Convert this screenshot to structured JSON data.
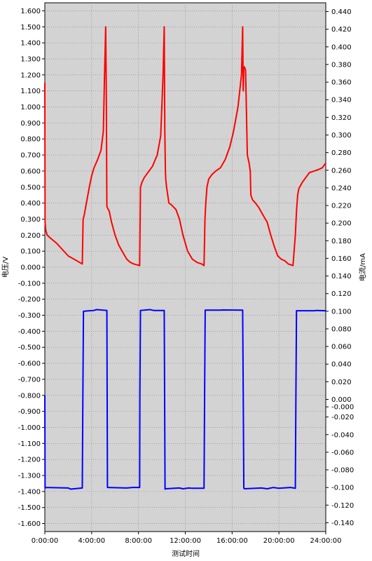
{
  "chart_data": {
    "type": "line",
    "xlabel": "测试时间",
    "ylabel_left": "电压/V",
    "ylabel_right": "电流/mA",
    "x_ticks": [
      "0:00:00",
      "4:00:00",
      "8:00:00",
      "12:00:00",
      "16:00:00",
      "20:00:00",
      "24:00:00"
    ],
    "x_range_hours": [
      0,
      24
    ],
    "y_left_range": [
      -1.65,
      1.65
    ],
    "y_left_ticks": [
      "1.600",
      "1.500",
      "1.400",
      "1.300",
      "1.200",
      "1.100",
      "1.000",
      "0.900",
      "0.800",
      "0.700",
      "0.600",
      "0.500",
      "0.400",
      "0.300",
      "0.200",
      "0.100",
      "0.000",
      "-0.100",
      "-0.200",
      "-0.300",
      "-0.400",
      "-0.500",
      "-0.600",
      "-0.700",
      "-0.800",
      "-0.900",
      "-1.000",
      "-1.100",
      "-1.200",
      "-1.300",
      "-1.400",
      "-1.500",
      "-1.600"
    ],
    "y_right_range": [
      -0.15,
      0.45
    ],
    "y_right_ticks": [
      "0.440",
      "0.420",
      "0.400",
      "0.380",
      "0.360",
      "0.340",
      "0.320",
      "0.300",
      "0.280",
      "0.260",
      "0.240",
      "0.220",
      "0.200",
      "0.180",
      "0.160",
      "0.140",
      "0.120",
      "0.100",
      "0.080",
      "0.060",
      "0.040",
      "0.020",
      "0.000",
      "-0.000",
      "-0.020",
      "-0.040",
      "-0.060",
      "-0.080",
      "-0.100",
      "-0.120",
      "-0.140"
    ],
    "grid": true,
    "colors": {
      "plot_bg": "#d3d3d3",
      "voltage": "#ff0000",
      "current": "#0000ff"
    },
    "series": [
      {
        "axis": "left",
        "color": "#ff0000",
        "x_hours": [
          0,
          0.02,
          0.08,
          0.2,
          0.5,
          1.0,
          1.5,
          2.0,
          2.5,
          3.2,
          3.27,
          3.35,
          3.5,
          3.8,
          4.0,
          4.2,
          4.5,
          4.8,
          5.0,
          5.1,
          5.2,
          5.25,
          5.3,
          5.35,
          5.5,
          5.7,
          6.0,
          6.3,
          6.6,
          7.0,
          7.3,
          7.6,
          8.1,
          8.17,
          8.3,
          8.5,
          8.8,
          9.2,
          9.6,
          9.9,
          10.1,
          10.2,
          10.25,
          10.3,
          10.33,
          10.4,
          10.6,
          10.8,
          11.2,
          11.5,
          11.8,
          12.2,
          12.6,
          13.0,
          13.4,
          13.6,
          13.68,
          13.75,
          13.85,
          14.0,
          14.3,
          14.6,
          15.0,
          15.4,
          15.8,
          16.1,
          16.5,
          16.8,
          16.9,
          16.95,
          17.0,
          17.05,
          17.15,
          17.3,
          17.45,
          17.55,
          17.6,
          17.75,
          18.0,
          18.3,
          18.6,
          19.0,
          19.3,
          19.6,
          19.9,
          20.2,
          20.5,
          20.8,
          21.2,
          21.4,
          21.5,
          21.6,
          21.7,
          22.0,
          22.3,
          22.6,
          23.0,
          23.4,
          23.7,
          24.0
        ],
        "y": [
          1.15,
          0.28,
          0.23,
          0.2,
          0.18,
          0.15,
          0.11,
          0.07,
          0.05,
          0.02,
          0.3,
          0.32,
          0.38,
          0.5,
          0.57,
          0.62,
          0.67,
          0.73,
          0.85,
          1.2,
          1.5,
          1.1,
          0.38,
          0.37,
          0.35,
          0.28,
          0.2,
          0.14,
          0.1,
          0.05,
          0.03,
          0.02,
          0.01,
          0.5,
          0.53,
          0.56,
          0.59,
          0.63,
          0.7,
          0.82,
          1.2,
          1.5,
          0.85,
          0.6,
          0.55,
          0.5,
          0.4,
          0.39,
          0.36,
          0.3,
          0.2,
          0.1,
          0.05,
          0.03,
          0.02,
          0.01,
          0.3,
          0.4,
          0.5,
          0.55,
          0.58,
          0.6,
          0.62,
          0.67,
          0.75,
          0.84,
          1.0,
          1.2,
          1.5,
          1.1,
          1.25,
          1.25,
          1.23,
          0.7,
          0.65,
          0.6,
          0.45,
          0.42,
          0.4,
          0.37,
          0.33,
          0.28,
          0.2,
          0.13,
          0.07,
          0.05,
          0.04,
          0.02,
          0.01,
          0.2,
          0.35,
          0.45,
          0.49,
          0.53,
          0.56,
          0.59,
          0.6,
          0.61,
          0.62,
          0.65
        ]
      },
      {
        "axis": "left",
        "color": "#0000ff",
        "x_hours": [
          0,
          0.02,
          0.04,
          2.0,
          2.2,
          3.2,
          3.25,
          3.3,
          4.2,
          4.4,
          5.3,
          5.35,
          7.0,
          7.5,
          8.1,
          8.12,
          8.17,
          9.0,
          9.3,
          10.2,
          10.27,
          10.33,
          11.5,
          11.8,
          12.3,
          12.6,
          13.0,
          13.6,
          13.65,
          13.7,
          15.0,
          15.2,
          16.9,
          16.95,
          17.0,
          17.05,
          18.5,
          19.0,
          19.5,
          20.0,
          21.0,
          21.4,
          21.45,
          21.5,
          23.0,
          23.2,
          24.0
        ],
        "y": [
          -0.8,
          -1.38,
          -1.375,
          -1.378,
          -1.385,
          -1.378,
          -0.8,
          -0.275,
          -0.27,
          -0.265,
          -0.27,
          -1.375,
          -1.378,
          -1.375,
          -1.375,
          -0.8,
          -0.27,
          -0.265,
          -0.27,
          -0.27,
          -1.385,
          -1.383,
          -1.378,
          -1.383,
          -1.378,
          -1.38,
          -1.38,
          -1.38,
          -0.8,
          -0.268,
          -0.268,
          -0.267,
          -0.268,
          -0.8,
          -1.378,
          -1.383,
          -1.378,
          -1.383,
          -1.375,
          -1.38,
          -1.375,
          -1.38,
          -0.8,
          -0.272,
          -0.272,
          -0.27,
          -0.272
        ]
      }
    ]
  }
}
